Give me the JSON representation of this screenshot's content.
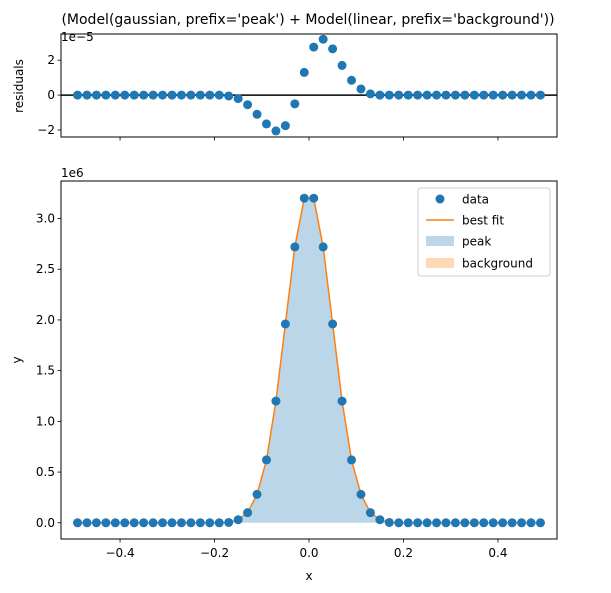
{
  "title": "(Model(gaussian, prefix='peak') + Model(linear, prefix='background'))",
  "colors": {
    "data": "#1f77b4",
    "fit": "#ff7f0e",
    "peak_fill": "#1f77b4",
    "background_fill": "#ff7f0e"
  },
  "chart_data": [
    {
      "type": "scatter",
      "panel": "residuals",
      "ylabel": "residuals",
      "offset_text": "1e−5",
      "xlim": [
        -0.525,
        0.525
      ],
      "ylim": [
        -2.4,
        3.5
      ],
      "yticks": [
        -2,
        0,
        2
      ],
      "ytick_labels": [
        "−2",
        "0",
        "2"
      ],
      "xticks": [
        -0.4,
        -0.2,
        0.0,
        0.2,
        0.4
      ],
      "zero_line": true,
      "x": [
        -0.49,
        -0.47,
        -0.45,
        -0.43,
        -0.41,
        -0.39,
        -0.37,
        -0.35,
        -0.33,
        -0.31,
        -0.29,
        -0.27,
        -0.25,
        -0.23,
        -0.21,
        -0.19,
        -0.17,
        -0.15,
        -0.13,
        -0.11,
        -0.09,
        -0.07,
        -0.05,
        -0.03,
        -0.01,
        0.01,
        0.03,
        0.05,
        0.07,
        0.09,
        0.11,
        0.13,
        0.15,
        0.17,
        0.19,
        0.21,
        0.23,
        0.25,
        0.27,
        0.29,
        0.31,
        0.33,
        0.35,
        0.37,
        0.39,
        0.41,
        0.43,
        0.45,
        0.47,
        0.49
      ],
      "values": [
        0,
        0,
        0,
        0,
        0,
        0,
        0,
        0,
        0,
        0,
        0,
        0,
        0,
        0,
        0,
        0,
        -0.05,
        -0.2,
        -0.55,
        -1.1,
        -1.65,
        -2.05,
        -1.75,
        -0.5,
        1.3,
        2.75,
        3.2,
        2.65,
        1.7,
        0.85,
        0.35,
        0.07,
        0,
        0,
        0,
        0,
        0,
        0,
        0,
        0,
        0,
        0,
        0,
        0,
        0,
        0,
        0,
        0,
        0,
        0
      ]
    },
    {
      "type": "scatter",
      "panel": "main",
      "xlabel": "x",
      "ylabel": "y",
      "offset_text": "1e6",
      "xlim": [
        -0.525,
        0.525
      ],
      "ylim": [
        -0.16,
        3.37
      ],
      "yticks": [
        0,
        0.5,
        1.0,
        1.5,
        2.0,
        2.5,
        3.0
      ],
      "ytick_labels": [
        "0.0",
        "0.5",
        "1.0",
        "1.5",
        "2.0",
        "2.5",
        "3.0"
      ],
      "xticks": [
        -0.4,
        -0.2,
        0.0,
        0.2,
        0.4
      ],
      "xtick_labels": [
        "−0.4",
        "−0.2",
        "0.0",
        "0.2",
        "0.4"
      ],
      "legend_position": "top-right",
      "legend": [
        "data",
        "best fit",
        "peak",
        "background"
      ],
      "x": [
        -0.49,
        -0.47,
        -0.45,
        -0.43,
        -0.41,
        -0.39,
        -0.37,
        -0.35,
        -0.33,
        -0.31,
        -0.29,
        -0.27,
        -0.25,
        -0.23,
        -0.21,
        -0.19,
        -0.17,
        -0.15,
        -0.13,
        -0.11,
        -0.09,
        -0.07,
        -0.05,
        -0.03,
        -0.01,
        0.01,
        0.03,
        0.05,
        0.07,
        0.09,
        0.11,
        0.13,
        0.15,
        0.17,
        0.19,
        0.21,
        0.23,
        0.25,
        0.27,
        0.29,
        0.31,
        0.33,
        0.35,
        0.37,
        0.39,
        0.41,
        0.43,
        0.45,
        0.47,
        0.49
      ],
      "series": [
        {
          "name": "data",
          "values": [
            0,
            0,
            0,
            0,
            0,
            0,
            0,
            0,
            0,
            0,
            0,
            0,
            0,
            0,
            0,
            0,
            0.003,
            0.03,
            0.1,
            0.28,
            0.62,
            1.2,
            1.96,
            2.72,
            3.2,
            3.2,
            2.72,
            1.96,
            1.2,
            0.62,
            0.28,
            0.1,
            0.03,
            0.003,
            0,
            0,
            0,
            0,
            0,
            0,
            0,
            0,
            0,
            0,
            0,
            0,
            0,
            0,
            0,
            0
          ]
        },
        {
          "name": "best fit",
          "values": [
            0,
            0,
            0,
            0,
            0,
            0,
            0,
            0,
            0,
            0,
            0,
            0,
            0,
            0,
            0,
            0,
            0.003,
            0.03,
            0.1,
            0.28,
            0.62,
            1.2,
            1.96,
            2.72,
            3.2,
            3.2,
            2.72,
            1.96,
            1.2,
            0.62,
            0.28,
            0.1,
            0.03,
            0.003,
            0,
            0,
            0,
            0,
            0,
            0,
            0,
            0,
            0,
            0,
            0,
            0,
            0,
            0,
            0,
            0
          ]
        },
        {
          "name": "peak",
          "values": [
            0,
            0,
            0,
            0,
            0,
            0,
            0,
            0,
            0,
            0,
            0,
            0,
            0,
            0,
            0,
            0,
            0.003,
            0.03,
            0.1,
            0.28,
            0.62,
            1.2,
            1.96,
            2.72,
            3.2,
            3.2,
            2.72,
            1.96,
            1.2,
            0.62,
            0.28,
            0.1,
            0.03,
            0.003,
            0,
            0,
            0,
            0,
            0,
            0,
            0,
            0,
            0,
            0,
            0,
            0,
            0,
            0,
            0,
            0
          ]
        },
        {
          "name": "background",
          "values": [
            0,
            0,
            0,
            0,
            0,
            0,
            0,
            0,
            0,
            0,
            0,
            0,
            0,
            0,
            0,
            0,
            0,
            0,
            0,
            0,
            0,
            0,
            0,
            0,
            0,
            0,
            0,
            0,
            0,
            0,
            0,
            0,
            0,
            0,
            0,
            0,
            0,
            0,
            0,
            0,
            0,
            0,
            0,
            0,
            0,
            0,
            0,
            0,
            0,
            0
          ]
        }
      ]
    }
  ]
}
